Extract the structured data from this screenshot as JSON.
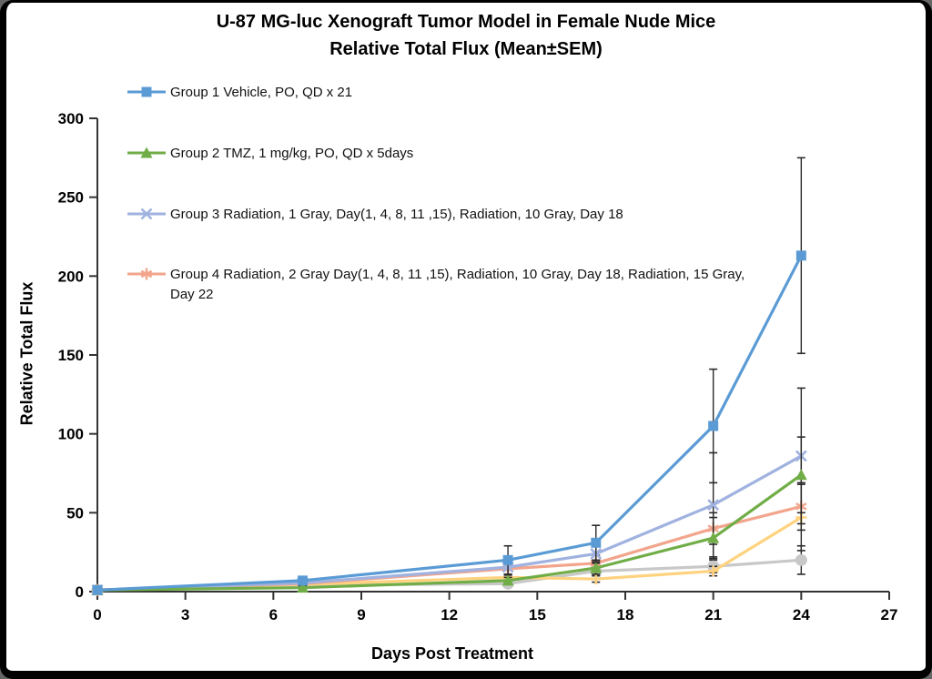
{
  "chart_data": {
    "type": "line",
    "title": "U-87 MG-luc Xenograft Tumor Model in Female Nude Mice",
    "subtitle": "Relative Total Flux (Mean±SEM)",
    "xlabel": "Days Post Treatment",
    "ylabel": "Relative Total Flux",
    "x": [
      0,
      7,
      14,
      17,
      21,
      24
    ],
    "xlim": [
      0,
      27
    ],
    "xticks": [
      0,
      3,
      6,
      9,
      12,
      15,
      18,
      21,
      24,
      27
    ],
    "ylim": [
      0,
      300
    ],
    "yticks": [
      0,
      50,
      100,
      150,
      200,
      250,
      300
    ],
    "grid": false,
    "error_bars": "SEM, vertical with caps",
    "legend_position": "upper-left, vertical list, first four series only",
    "series": [
      {
        "name": "Group 1 Vehicle, PO, QD x 21",
        "color": "#5B9BD5",
        "marker": "square",
        "in_legend": true,
        "values": [
          1,
          7,
          20,
          31,
          105,
          213
        ],
        "sem": [
          0.5,
          2,
          9,
          11,
          36,
          62
        ]
      },
      {
        "name": "Group 2 TMZ, 1 mg/kg, PO, QD x 5days",
        "color": "#70AD47",
        "marker": "triangle",
        "in_legend": true,
        "values": [
          1,
          2.5,
          7,
          15,
          34,
          74
        ],
        "sem": [
          0.3,
          1,
          2,
          4,
          13,
          24
        ]
      },
      {
        "name": "Group 3 Radiation, 1 Gray, Day(1, 4, 8, 11 ,15), Radiation, 10 Gray, Day 18",
        "color": "#A0B2DF",
        "marker": "x",
        "in_legend": true,
        "values": [
          1,
          5.5,
          15.5,
          24,
          55,
          86
        ],
        "sem": [
          0.3,
          1.5,
          5,
          6,
          33,
          43
        ]
      },
      {
        "name": "Group 4 Radiation, 2 Gray Day(1, 4, 8, 11 ,15), Radiation, 10 Gray, Day 18, Radiation, 15 Gray, Day 22",
        "color": "#F2A58C",
        "marker": "asterisk",
        "in_legend": true,
        "values": [
          1,
          5,
          14.5,
          18,
          40,
          54
        ],
        "sem": [
          0.3,
          1.5,
          4,
          5,
          10,
          15
        ]
      },
      {
        "name": "",
        "color": "#FFD27F",
        "marker": "plus",
        "in_legend": false,
        "values": [
          1,
          4.5,
          9,
          8,
          13,
          47
        ],
        "sem": [
          0.3,
          1,
          2,
          2,
          3,
          21
        ]
      },
      {
        "name": "",
        "color": "#C8C8C8",
        "marker": "circle",
        "in_legend": false,
        "values": [
          1,
          4,
          5,
          13,
          16,
          20
        ],
        "sem": [
          0.3,
          1,
          1.5,
          3,
          4,
          9
        ]
      }
    ]
  }
}
